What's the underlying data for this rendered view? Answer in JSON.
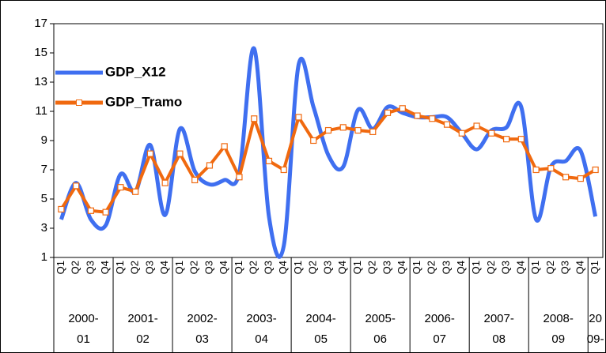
{
  "chart_data": {
    "type": "line",
    "categories": [
      "Q1",
      "Q2",
      "Q3",
      "Q4",
      "Q1",
      "Q2",
      "Q3",
      "Q4",
      "Q1",
      "Q2",
      "Q3",
      "Q4",
      "Q1",
      "Q2",
      "Q3",
      "Q4",
      "Q1",
      "Q2",
      "Q3",
      "Q4",
      "Q1",
      "Q2",
      "Q3",
      "Q4",
      "Q1",
      "Q2",
      "Q3",
      "Q4",
      "Q1",
      "Q2",
      "Q3",
      "Q4",
      "Q1",
      "Q2",
      "Q3",
      "Q4",
      "Q1"
    ],
    "groups": [
      [
        "2000-",
        "01"
      ],
      [
        "2001-",
        "02"
      ],
      [
        "2002-",
        "03"
      ],
      [
        "2003-",
        "04"
      ],
      [
        "2004-",
        "05"
      ],
      [
        "2005-",
        "06"
      ],
      [
        "2006-",
        "07"
      ],
      [
        "2007-",
        "08"
      ],
      [
        "2008-",
        "09"
      ],
      [
        "20",
        "09-"
      ]
    ],
    "series": [
      {
        "name": "GDP_X12",
        "color": "#3f6ff0",
        "smooth": true,
        "markers": false,
        "values": [
          3.6,
          6.1,
          3.6,
          3.2,
          6.7,
          5.5,
          8.7,
          3.9,
          9.8,
          6.9,
          6.0,
          6.3,
          6.8,
          15.3,
          3.8,
          1.8,
          14.2,
          11.3,
          8.0,
          7.2,
          11.1,
          9.8,
          11.3,
          10.9,
          10.6,
          10.6,
          10.6,
          9.5,
          8.4,
          9.7,
          9.9,
          11.3,
          3.6,
          7.2,
          7.6,
          8.3,
          3.8
        ]
      },
      {
        "name": "GDP_Tramo",
        "color": "#f0690f",
        "smooth": false,
        "markers": true,
        "values": [
          4.3,
          5.9,
          4.2,
          4.1,
          5.8,
          5.5,
          8.1,
          6.1,
          8.1,
          6.3,
          7.3,
          8.6,
          6.5,
          10.5,
          7.6,
          7.0,
          10.6,
          9.0,
          9.7,
          9.9,
          9.7,
          9.6,
          10.9,
          11.2,
          10.7,
          10.5,
          10.1,
          9.5,
          10.0,
          9.5,
          9.1,
          9.1,
          7.0,
          7.1,
          6.5,
          6.4,
          7.0
        ]
      }
    ],
    "ylim": [
      1,
      17
    ],
    "yticks": [
      1,
      3,
      5,
      7,
      9,
      11,
      13,
      15,
      17
    ],
    "grid": false,
    "legend": "upper-left"
  }
}
